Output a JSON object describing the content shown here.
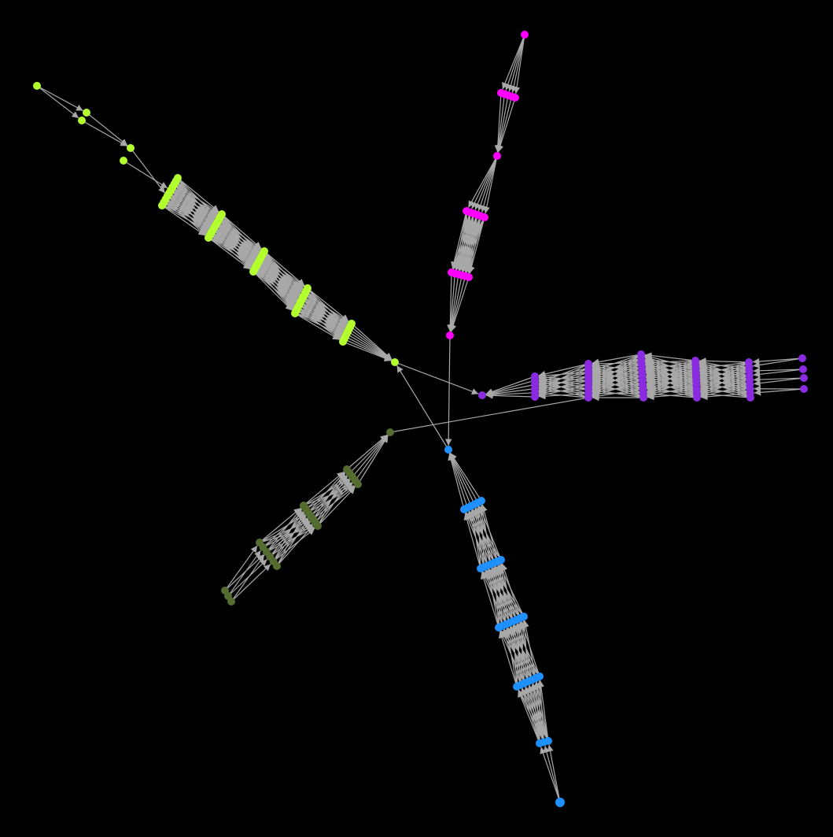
{
  "graph": {
    "background": "#000000",
    "edge_color": "#a8a8a8",
    "clusters": [
      {
        "name": "lime",
        "color": "#b4ff2e"
      },
      {
        "name": "magenta",
        "color": "#ff00ff"
      },
      {
        "name": "purple",
        "color": "#8a2be2"
      },
      {
        "name": "blue",
        "color": "#1e90ff"
      },
      {
        "name": "olive",
        "color": "#556b2f"
      }
    ]
  }
}
